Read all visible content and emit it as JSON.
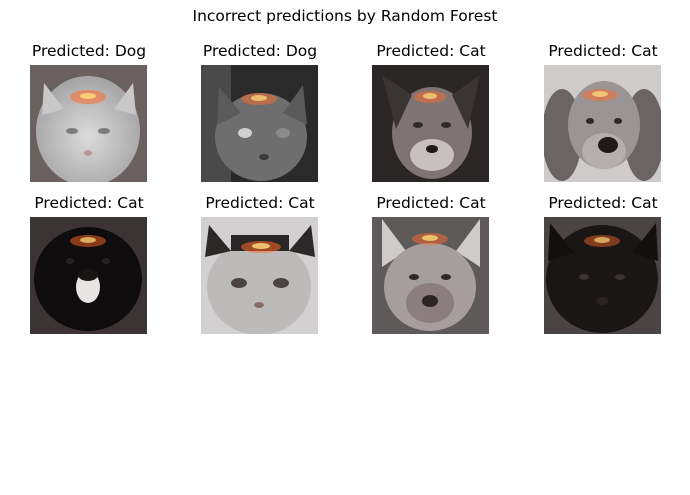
{
  "title": "Incorrect predictions by Random Forest",
  "panels": [
    {
      "label": "Predicted: Dog",
      "subject": "white fluffy cat",
      "tone": "light"
    },
    {
      "label": "Predicted: Dog",
      "subject": "gray cat",
      "tone": "mid"
    },
    {
      "label": "Predicted: Cat",
      "subject": "dog face",
      "tone": "dark"
    },
    {
      "label": "Predicted: Cat",
      "subject": "spaniel dog",
      "tone": "light"
    },
    {
      "label": "Predicted: Cat",
      "subject": "black dog",
      "tone": "dark"
    },
    {
      "label": "Predicted: Cat",
      "subject": "white cat",
      "tone": "light"
    },
    {
      "label": "Predicted: Cat",
      "subject": "shepherd dog",
      "tone": "mid"
    },
    {
      "label": "Predicted: Cat",
      "subject": "black cat",
      "tone": "dark"
    }
  ],
  "overlay": {
    "heat_color": "#ff6a2a",
    "hot_color": "#ffe07a"
  }
}
